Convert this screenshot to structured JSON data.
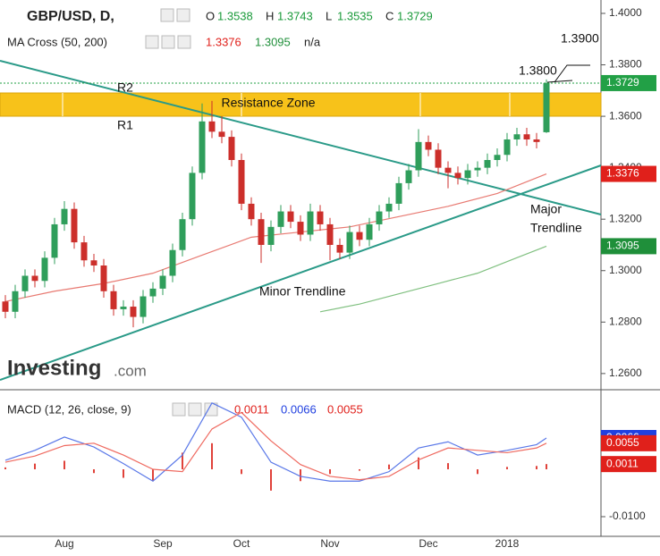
{
  "chart_data": [
    {
      "type": "candlestick",
      "title": "GBP/USD, D,",
      "quote": [
        {
          "label": "O",
          "value": 1.3538
        },
        {
          "label": "H",
          "value": 1.3743
        },
        {
          "label": "L",
          "value": 1.3535
        },
        {
          "label": "C",
          "value": 1.3729
        }
      ],
      "indicator": "MA Cross (50, 200)",
      "ma_values": [
        1.3376,
        1.3095
      ],
      "ma_na": "n/a",
      "categories": [
        null,
        null,
        null,
        null,
        null,
        null,
        "Aug",
        null,
        null,
        null,
        null,
        null,
        null,
        null,
        null,
        null,
        "Sep",
        null,
        null,
        null,
        null,
        null,
        null,
        null,
        "Oct",
        null,
        null,
        null,
        null,
        null,
        null,
        null,
        null,
        "Nov",
        null,
        null,
        null,
        null,
        null,
        null,
        null,
        null,
        null,
        "Dec",
        null,
        null,
        null,
        null,
        null,
        null,
        null,
        "2018",
        null,
        null,
        null,
        null
      ],
      "open": [
        1.288,
        1.284,
        1.292,
        1.298,
        1.296,
        1.305,
        1.318,
        1.324,
        1.311,
        1.304,
        1.302,
        1.292,
        1.285,
        1.286,
        1.282,
        1.29,
        1.293,
        1.298,
        1.308,
        1.32,
        1.338,
        1.358,
        1.354,
        1.352,
        1.343,
        1.326,
        1.32,
        1.31,
        1.317,
        1.323,
        1.319,
        1.314,
        1.323,
        1.318,
        1.31,
        1.307,
        1.315,
        1.312,
        1.318,
        1.323,
        1.326,
        1.334,
        1.339,
        1.35,
        1.347,
        1.34,
        1.338,
        1.336,
        1.339,
        1.34,
        1.343,
        1.345,
        1.351,
        1.353,
        1.351,
        1.3538
      ],
      "high": [
        1.2905,
        1.2945,
        1.3005,
        1.3005,
        1.3075,
        1.3205,
        1.327,
        1.3265,
        1.3135,
        1.3065,
        1.3045,
        1.2945,
        1.2885,
        1.2885,
        1.2925,
        1.2955,
        1.3005,
        1.3105,
        1.3225,
        1.3405,
        1.365,
        1.366,
        1.36,
        1.3545,
        1.3455,
        1.3285,
        1.3225,
        1.3195,
        1.3255,
        1.3255,
        1.3215,
        1.326,
        1.3255,
        1.3205,
        1.3125,
        1.3175,
        1.3175,
        1.3205,
        1.3255,
        1.3285,
        1.3365,
        1.3415,
        1.355,
        1.3525,
        1.3495,
        1.3425,
        1.3405,
        1.3415,
        1.3425,
        1.3455,
        1.3475,
        1.3535,
        1.3555,
        1.3555,
        1.3535,
        1.3743
      ],
      "low": [
        1.2815,
        1.2815,
        1.2895,
        1.2935,
        1.2935,
        1.3025,
        1.3155,
        1.3085,
        1.3015,
        1.2995,
        1.2895,
        1.2825,
        1.2825,
        1.278,
        1.2795,
        1.2875,
        1.2905,
        1.2955,
        1.3055,
        1.3175,
        1.3355,
        1.3515,
        1.3495,
        1.3405,
        1.3235,
        1.3175,
        1.303,
        1.3075,
        1.3145,
        1.3165,
        1.3115,
        1.3115,
        1.3155,
        1.304,
        1.3045,
        1.3045,
        1.3095,
        1.3095,
        1.3155,
        1.3205,
        1.3235,
        1.3315,
        1.3365,
        1.3445,
        1.3375,
        1.332,
        1.3335,
        1.3335,
        1.3365,
        1.3375,
        1.3405,
        1.3425,
        1.3485,
        1.3485,
        1.3475,
        1.3535
      ],
      "close": [
        1.284,
        1.292,
        1.298,
        1.296,
        1.305,
        1.318,
        1.324,
        1.311,
        1.304,
        1.302,
        1.292,
        1.285,
        1.286,
        1.282,
        1.29,
        1.293,
        1.298,
        1.308,
        1.32,
        1.338,
        1.358,
        1.354,
        1.352,
        1.343,
        1.326,
        1.32,
        1.31,
        1.317,
        1.323,
        1.319,
        1.314,
        1.323,
        1.318,
        1.31,
        1.307,
        1.315,
        1.312,
        1.318,
        1.323,
        1.326,
        1.334,
        1.339,
        1.35,
        1.347,
        1.34,
        1.338,
        1.336,
        1.339,
        1.34,
        1.343,
        1.345,
        1.351,
        1.353,
        1.351,
        1.35,
        1.3729
      ],
      "up_color": "#2f9e5b",
      "down_color": "#cc2f2b",
      "series": [
        {
          "color": "#e87a72",
          "label_color": "#e0201b",
          "x": [
            0,
            5,
            10,
            15,
            20,
            25,
            30,
            35,
            40,
            45,
            50,
            55
          ],
          "values": [
            1.288,
            1.292,
            1.295,
            1.299,
            1.306,
            1.313,
            1.315,
            1.317,
            1.321,
            1.325,
            1.33,
            1.3376
          ]
        },
        {
          "color": "#80c080",
          "label_color": "#1f8f3a",
          "x": [
            32,
            36,
            40,
            44,
            48,
            52,
            55
          ],
          "values": [
            1.284,
            1.287,
            1.291,
            1.295,
            1.299,
            1.305,
            1.3095
          ]
        }
      ],
      "last_color": "#22a046",
      "ylim": [
        1.2537,
        1.4052
      ],
      "yticks": [
        {
          "value": 1.26,
          "label": "1.2600"
        },
        {
          "value": 1.28,
          "label": "1.2800"
        },
        {
          "value": 1.3,
          "label": "1.3000"
        },
        {
          "value": 1.32,
          "label": "1.3200"
        },
        {
          "value": 1.34,
          "label": "1.3400"
        },
        {
          "value": 1.36,
          "label": "1.3600"
        },
        {
          "value": 1.38,
          "label": "1.3800"
        },
        {
          "value": 1.4,
          "label": "1.4000"
        }
      ],
      "annotations": {
        "r2": "R2",
        "r1": "R1",
        "zone": "Resistance Zone",
        "major": [
          "Major",
          "Trendline"
        ],
        "minor": "Minor Trendline",
        "t1": "1.3800",
        "t2": "1.3900"
      },
      "logo": [
        "Investing",
        ".com"
      ]
    },
    {
      "type": "macd",
      "title": "MACD (12, 26, close, 9)",
      "header_values": [
        {
          "value": 0.0011,
          "color": "#e0201b"
        },
        {
          "value": 0.0066,
          "color": "#2040e0"
        },
        {
          "value": 0.0055,
          "color": "#e0201b"
        }
      ],
      "x": [
        0,
        3,
        6,
        9,
        12,
        15,
        18,
        21,
        24,
        27,
        30,
        33,
        36,
        39,
        42,
        45,
        48,
        51,
        54,
        55
      ],
      "series": [
        {
          "color": "#5a78e8",
          "values": [
            0.0019,
            0.004,
            0.0068,
            0.0047,
            0.0012,
            -0.0025,
            0.003,
            0.014,
            0.011,
            0.0015,
            -0.0015,
            -0.0025,
            -0.0025,
            -0.0005,
            0.0045,
            0.0058,
            0.003,
            0.004,
            0.0052,
            0.0066
          ]
        },
        {
          "color": "#ef6a60",
          "values": [
            0.0015,
            0.0028,
            0.005,
            0.0055,
            0.003,
            0.0,
            -0.0005,
            0.0085,
            0.012,
            0.006,
            0.001,
            -0.0015,
            -0.0022,
            -0.0015,
            0.002,
            0.0045,
            0.004,
            0.0035,
            0.0045,
            0.0055
          ]
        }
      ],
      "histogram": {
        "color": "#e0423a",
        "values": [
          0.0004,
          0.0012,
          0.0018,
          -0.0008,
          -0.0018,
          -0.0025,
          0.0035,
          0.0055,
          -0.001,
          -0.0045,
          -0.0025,
          -0.001,
          -0.0003,
          0.001,
          0.0025,
          0.0013,
          -0.001,
          0.0005,
          0.0007,
          0.0011
        ]
      },
      "ylim": [
        -0.01415,
        0.0166
      ],
      "yticks": [
        {
          "value": -0.01,
          "label": "-0.0100"
        }
      ]
    }
  ]
}
